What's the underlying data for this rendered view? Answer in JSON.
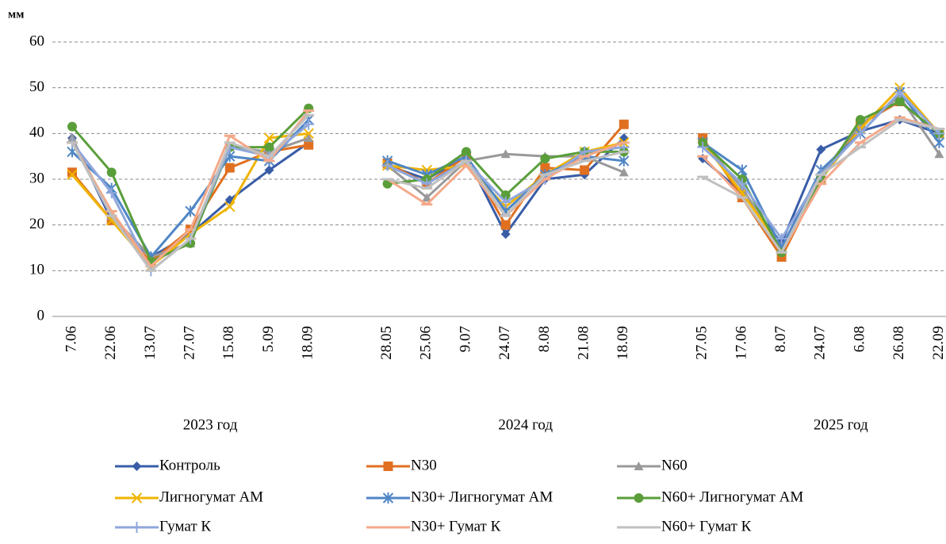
{
  "chart_data": {
    "type": "line",
    "y_label": "мм",
    "categories": [
      "7.06",
      "22.06",
      "13.07",
      "27.07",
      "15.08",
      "5.09",
      "18.09",
      null,
      "28.05",
      "25.06",
      "9.07",
      "24.07",
      "8.08",
      "21.08",
      "18.09",
      null,
      "27.05",
      "17.06",
      "8.07",
      "24.07",
      "6.08",
      "26.08",
      "22.09"
    ],
    "annotations": [
      "2023 год",
      "2024 год",
      "2025 год"
    ],
    "ylim": [
      0,
      60
    ],
    "yticks": [
      0,
      10,
      20,
      30,
      40,
      50,
      60
    ],
    "grid": true,
    "series": [
      {
        "name": "Контроль",
        "color": "#3a5da8",
        "marker": "diamond",
        "values": [
          39,
          21,
          13,
          18,
          25.5,
          32,
          38,
          null,
          33,
          30,
          35,
          18,
          30,
          31,
          39,
          null,
          34.5,
          27,
          16,
          36.5,
          40.5,
          43,
          40
        ]
      },
      {
        "name": "N30",
        "color": "#e07020",
        "marker": "square",
        "values": [
          31.5,
          21,
          12,
          19,
          32.5,
          36,
          37.5,
          null,
          33.5,
          29,
          35,
          20,
          32.5,
          32,
          42,
          null,
          39,
          26,
          13,
          30,
          42,
          47,
          40
        ]
      },
      {
        "name": "N60",
        "color": "#999999",
        "marker": "triangle",
        "values": [
          39,
          22,
          13,
          16,
          37,
          36,
          39,
          null,
          33,
          26,
          34,
          35.5,
          35,
          35,
          31.5,
          null,
          38.5,
          28,
          15,
          31,
          42,
          48,
          35.5
        ]
      },
      {
        "name": "Лигногумат АМ",
        "color": "#f0b400",
        "marker": "x",
        "values": [
          31,
          21,
          11,
          18,
          24,
          39,
          40,
          null,
          33,
          32,
          33,
          24,
          31,
          36,
          38,
          null,
          38,
          27,
          15,
          30,
          41,
          50,
          40
        ]
      },
      {
        "name": "N30+ Лигногумат АМ",
        "color": "#4f86c6",
        "marker": "star",
        "values": [
          36,
          28,
          13,
          23,
          35,
          34,
          43,
          null,
          34,
          31,
          35,
          23,
          31,
          35,
          34,
          null,
          38,
          32,
          15,
          32,
          40,
          49,
          38
        ]
      },
      {
        "name": "N60+ Лигногумат АМ",
        "color": "#5a9e3a",
        "marker": "circle",
        "values": [
          41.5,
          31.5,
          12,
          16,
          37,
          37,
          45.5,
          null,
          29,
          30,
          36,
          26.5,
          34.5,
          36,
          36,
          null,
          38,
          30,
          14,
          30,
          43,
          47,
          40
        ]
      },
      {
        "name": "Гумат К",
        "color": "#8fa7dc",
        "marker": "plus",
        "values": [
          38,
          27,
          10,
          17,
          37,
          35,
          42,
          null,
          33,
          29,
          34,
          25,
          30,
          36,
          37,
          null,
          37,
          29,
          17,
          31,
          40,
          49,
          40
        ]
      },
      {
        "name": "N30+ Гумат К",
        "color": "#f4a98a",
        "marker": "dash",
        "values": [
          38,
          23,
          11,
          19,
          39.5,
          34,
          45,
          null,
          30,
          24.5,
          33,
          22,
          30,
          35,
          38,
          null,
          35,
          26,
          14,
          29,
          38,
          43.5,
          41
        ]
      },
      {
        "name": "N60+ Гумат К",
        "color": "#c0c0c0",
        "marker": "dash",
        "values": [
          38,
          22,
          10,
          17,
          38,
          35,
          44,
          null,
          30,
          28,
          34,
          22,
          31,
          34,
          36,
          null,
          30.5,
          26,
          14,
          31,
          37,
          43,
          41
        ]
      }
    ]
  }
}
